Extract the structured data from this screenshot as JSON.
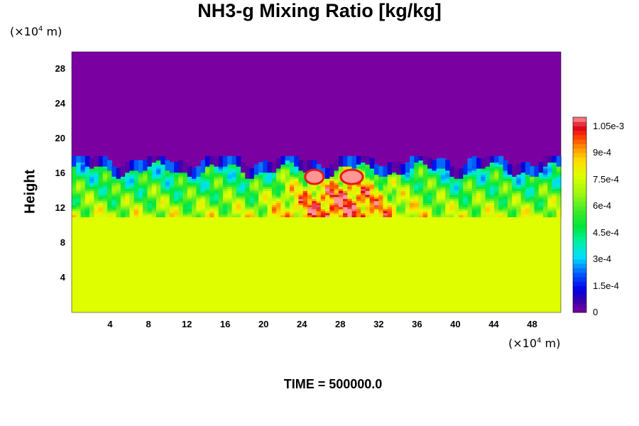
{
  "chart_data": {
    "type": "heatmap",
    "title": "NH3-g Mixing Ratio [kg/kg]",
    "xlabel": "",
    "ylabel": "Height",
    "x_unit": "(×10⁴ m)",
    "y_unit": "(×10⁴ m)",
    "xlim": [
      0,
      51
    ],
    "ylim": [
      0,
      30
    ],
    "x_ticks": [
      "4",
      "8",
      "12",
      "16",
      "20",
      "24",
      "28",
      "32",
      "36",
      "40",
      "44",
      "48"
    ],
    "y_ticks": [
      "4",
      "8",
      "12",
      "16",
      "20",
      "24",
      "28"
    ],
    "colorbar": {
      "min": 0,
      "max": 0.0011,
      "tick_labels": [
        "0",
        "1.5e-4",
        "3e-4",
        "4.5e-4",
        "6e-4",
        "7.5e-4",
        "9e-4",
        "1.05e-3"
      ],
      "tick_values": [
        0,
        0.00015,
        0.0003,
        0.00045,
        0.0006,
        0.00075,
        0.0009,
        0.00105
      ]
    },
    "field_description_values": {
      "upper_layer_value": 0,
      "upper_layer_from_height": 18,
      "lower_layer_value": 0.00079,
      "lower_layer_to_height": 11,
      "mixed_layer_range": [
        11,
        18
      ],
      "peak_value": 0.0011,
      "peak_location_x": [
        24,
        30
      ]
    },
    "annotation": "TIME = 500000.0"
  },
  "colors": {
    "top_purple": "#7a00a2",
    "bottom_yellow": "#dfff00"
  }
}
